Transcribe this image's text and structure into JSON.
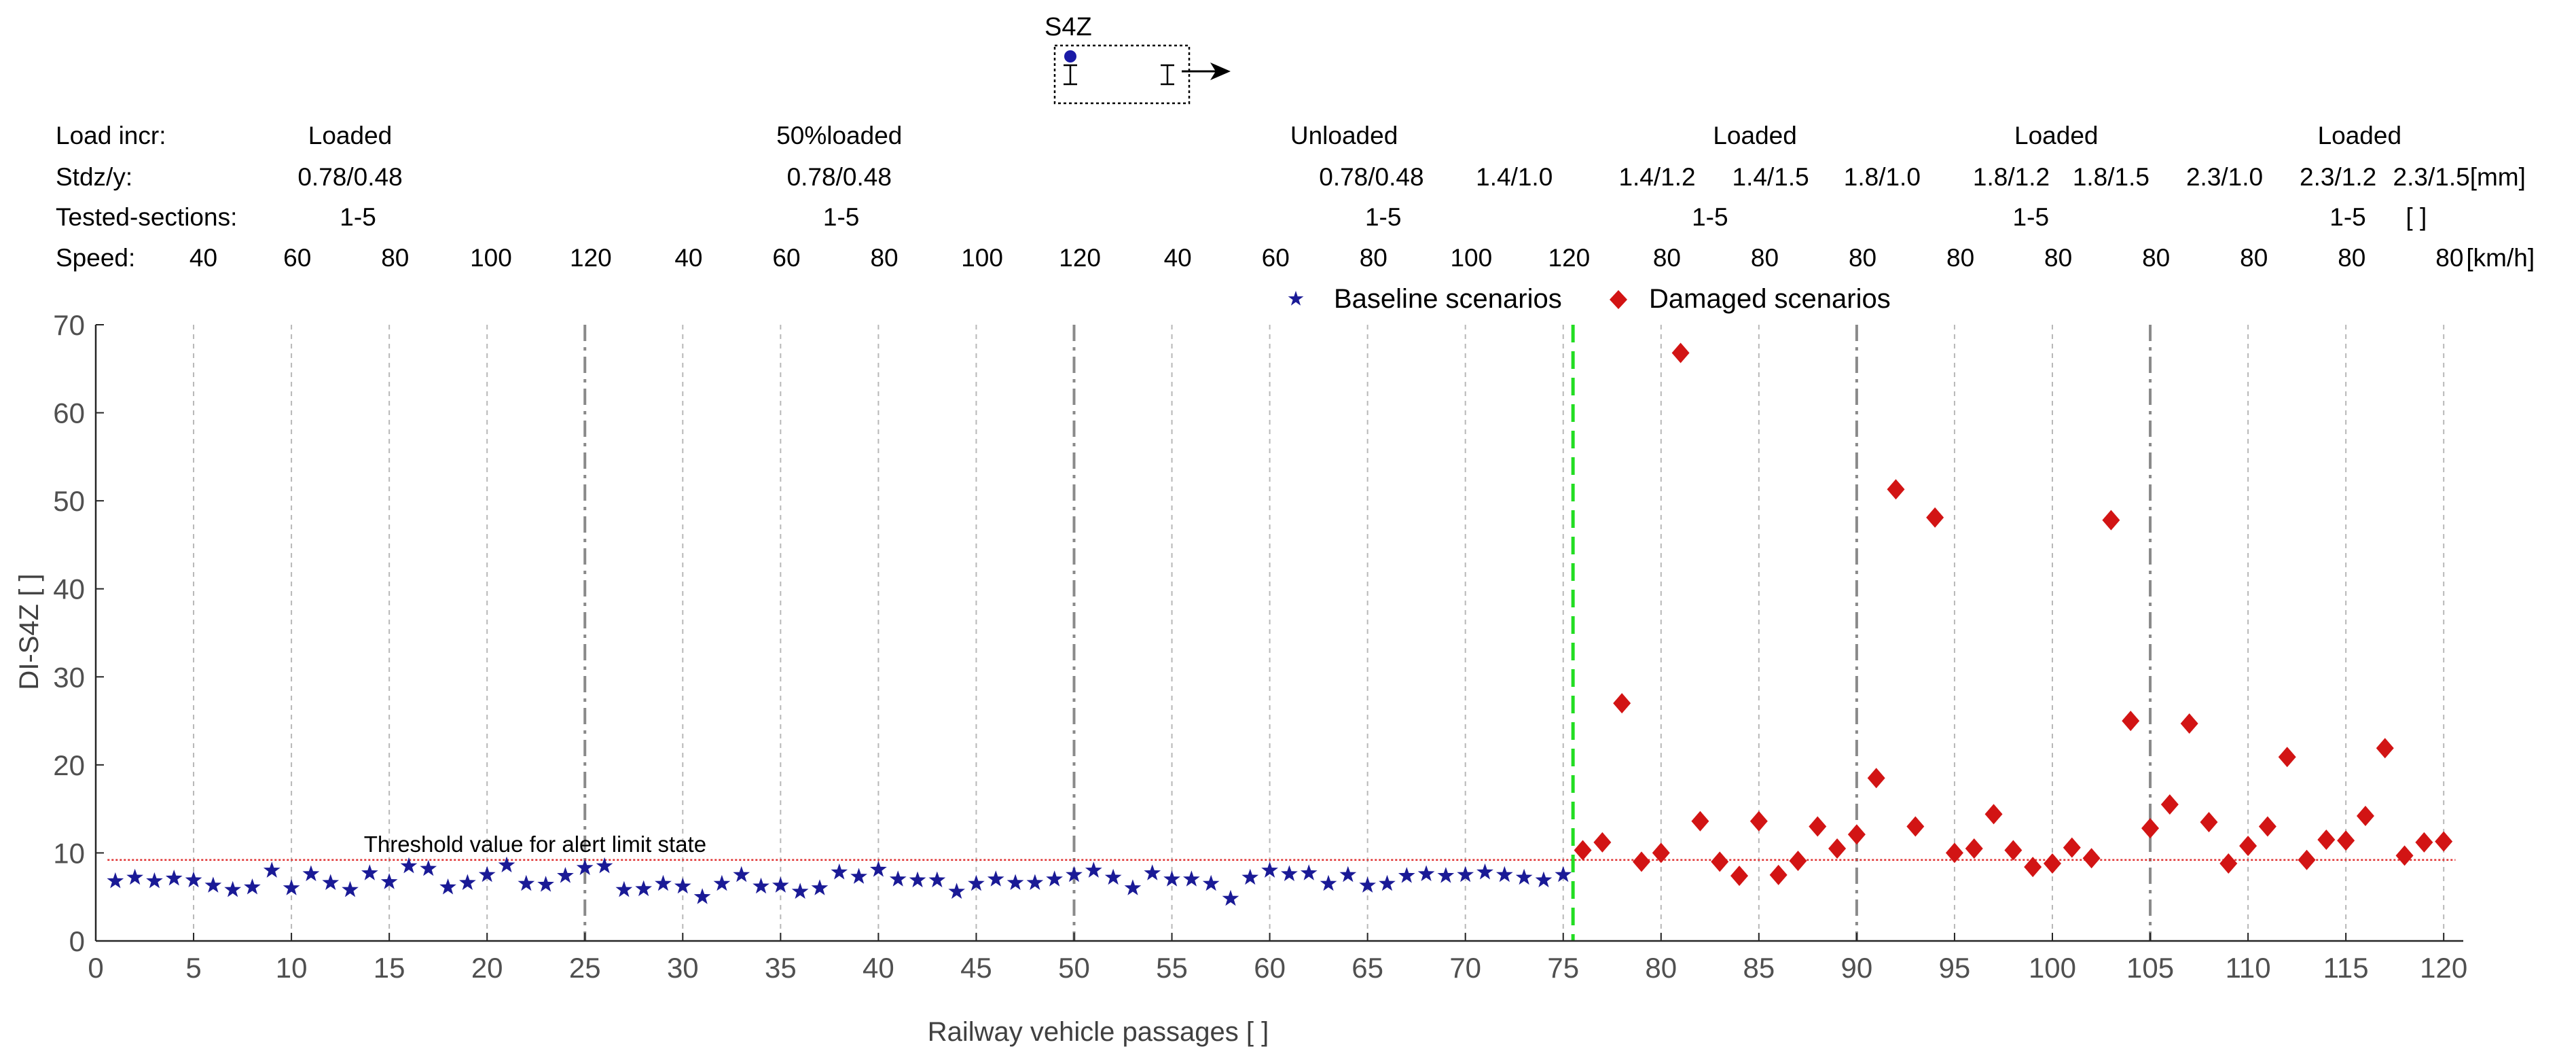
{
  "chart_data": {
    "type": "scatter",
    "title": "",
    "sensor_diagram": {
      "label": "S4Z"
    },
    "xlabel": "Railway vehicle  passages [  ]",
    "ylabel": "DI-S4Z [ ]",
    "xlim": [
      0,
      121
    ],
    "ylim": [
      0,
      70
    ],
    "xticks": [
      0,
      5,
      10,
      15,
      20,
      25,
      30,
      35,
      40,
      45,
      50,
      55,
      60,
      65,
      70,
      75,
      80,
      85,
      90,
      95,
      100,
      105,
      110,
      115,
      120
    ],
    "yticks": [
      0,
      10,
      20,
      30,
      40,
      50,
      60,
      70
    ],
    "threshold": {
      "value": 9.2,
      "label": "Threshold value for alert limit state",
      "color": "#e03030"
    },
    "group_separators": [
      25,
      50,
      90,
      105
    ],
    "damage_onset": 75.5,
    "legend": [
      {
        "name": "Baseline scenarios",
        "marker": "star",
        "color": "#1a1a96"
      },
      {
        "name": "Damaged scenarios",
        "marker": "diamond",
        "color": "#d21414"
      }
    ],
    "header_rows": {
      "load": {
        "label": "Load incr:",
        "entries": [
          {
            "text": "Loaded",
            "pos": 13
          },
          {
            "text": "50%loaded",
            "pos": 38
          },
          {
            "text": "Unloaded",
            "pos": 63.8
          },
          {
            "text": "Loaded",
            "pos": 84.8
          },
          {
            "text": "Loaded",
            "pos": 100.2
          },
          {
            "text": "Loaded",
            "pos": 115.7
          }
        ]
      },
      "std": {
        "label": "Stdz/y:",
        "entries": [
          {
            "text": "0.78/0.48",
            "pos": 13
          },
          {
            "text": "0.78/0.48",
            "pos": 38
          },
          {
            "text": "0.78/0.48",
            "pos": 65.2
          },
          {
            "text": "1.4/1.0",
            "pos": 72.5
          },
          {
            "text": "1.4/1.2",
            "pos": 79.8
          },
          {
            "text": "1.4/1.5",
            "pos": 85.6
          },
          {
            "text": "1.8/1.0",
            "pos": 91.3
          },
          {
            "text": "1.8/1.2",
            "pos": 97.9
          },
          {
            "text": "1.8/1.5",
            "pos": 103.0
          },
          {
            "text": "2.3/1.0",
            "pos": 108.8
          },
          {
            "text": "2.3/1.2",
            "pos": 114.6
          },
          {
            "text": "2.3/1.5[mm]",
            "pos": 120.8
          }
        ]
      },
      "sections": {
        "label": "Tested-sections:",
        "entries": [
          {
            "text": "1-5",
            "pos": 13.4
          },
          {
            "text": "1-5",
            "pos": 38.1
          },
          {
            "text": "1-5",
            "pos": 65.8
          },
          {
            "text": "1-5",
            "pos": 82.5
          },
          {
            "text": "1-5",
            "pos": 98.9
          },
          {
            "text": "1-5",
            "pos": 115.1
          },
          {
            "text": "[ ]",
            "pos": 118.6
          }
        ]
      },
      "speed": {
        "label": "Speed:",
        "entries": [
          {
            "text": "40",
            "pos": 5.5
          },
          {
            "text": "60",
            "pos": 10.3
          },
          {
            "text": "80",
            "pos": 15.3
          },
          {
            "text": "100",
            "pos": 20.2
          },
          {
            "text": "120",
            "pos": 25.3
          },
          {
            "text": "40",
            "pos": 30.3
          },
          {
            "text": "60",
            "pos": 35.3
          },
          {
            "text": "80",
            "pos": 40.3
          },
          {
            "text": "100",
            "pos": 45.3
          },
          {
            "text": "120",
            "pos": 50.3
          },
          {
            "text": "40",
            "pos": 55.3
          },
          {
            "text": "60",
            "pos": 60.3
          },
          {
            "text": "80",
            "pos": 65.3
          },
          {
            "text": "100",
            "pos": 70.3
          },
          {
            "text": "120",
            "pos": 75.3
          },
          {
            "text": "80",
            "pos": 80.3
          },
          {
            "text": "80",
            "pos": 85.3
          },
          {
            "text": "80",
            "pos": 90.3
          },
          {
            "text": "80",
            "pos": 95.3
          },
          {
            "text": "80",
            "pos": 100.3
          },
          {
            "text": "80",
            "pos": 105.3
          },
          {
            "text": "80",
            "pos": 110.3
          },
          {
            "text": "80",
            "pos": 115.3
          },
          {
            "text": "80",
            "pos": 120.3
          },
          {
            "text": "[km/h]",
            "pos": 122.9
          }
        ]
      }
    },
    "series": [
      {
        "name": "Baseline scenarios",
        "marker": "star",
        "x": [
          1,
          2,
          3,
          4,
          5,
          6,
          7,
          8,
          9,
          10,
          11,
          12,
          13,
          14,
          15,
          16,
          17,
          18,
          19,
          20,
          21,
          22,
          23,
          24,
          25,
          26,
          27,
          28,
          29,
          30,
          31,
          32,
          33,
          34,
          35,
          36,
          37,
          38,
          39,
          40,
          41,
          42,
          43,
          44,
          45,
          46,
          47,
          48,
          49,
          50,
          51,
          52,
          53,
          54,
          55,
          56,
          57,
          58,
          59,
          60,
          61,
          62,
          63,
          64,
          65,
          66,
          67,
          68,
          69,
          70,
          71,
          72,
          73,
          74,
          75
        ],
        "y": [
          6.8,
          7.2,
          6.8,
          7.1,
          6.9,
          6.3,
          5.8,
          6.1,
          8.0,
          6.0,
          7.6,
          6.6,
          5.8,
          7.7,
          6.7,
          8.5,
          8.2,
          6.1,
          6.6,
          7.5,
          8.6,
          6.5,
          6.4,
          7.4,
          8.3,
          8.5,
          5.8,
          5.9,
          6.5,
          6.2,
          5.0,
          6.5,
          7.5,
          6.2,
          6.3,
          5.6,
          6.0,
          7.8,
          7.3,
          8.1,
          7.0,
          6.9,
          6.9,
          5.6,
          6.5,
          7.0,
          6.6,
          6.6,
          7.0,
          7.5,
          8.0,
          7.2,
          6.0,
          7.7,
          7.0,
          7.0,
          6.5,
          4.8,
          7.2,
          8.0,
          7.6,
          7.7,
          6.5,
          7.5,
          6.3,
          6.5,
          7.4,
          7.6,
          7.4,
          7.5,
          7.8,
          7.5,
          7.2,
          6.9,
          7.5
        ]
      },
      {
        "name": "Damaged scenarios",
        "marker": "diamond",
        "x": [
          76,
          77,
          78,
          79,
          80,
          81,
          82,
          83,
          84,
          85,
          86,
          87,
          88,
          89,
          90,
          91,
          92,
          93,
          94,
          95,
          96,
          97,
          98,
          99,
          100,
          101,
          102,
          103,
          104,
          105,
          106,
          107,
          108,
          109,
          110,
          111,
          112,
          113,
          114,
          115,
          116,
          117,
          118,
          119,
          120
        ],
        "y": [
          10.3,
          11.2,
          27.0,
          9.0,
          10.0,
          66.8,
          13.6,
          9.0,
          7.4,
          13.6,
          7.5,
          9.1,
          13.0,
          10.5,
          12.1,
          18.5,
          51.3,
          13.0,
          48.1,
          10.0,
          10.5,
          14.4,
          10.3,
          8.4,
          8.8,
          10.6,
          9.4,
          47.8,
          25.0,
          12.8,
          15.5,
          24.7,
          13.5,
          8.8,
          10.8,
          13.0,
          20.9,
          9.2,
          11.5,
          11.4,
          14.2,
          21.9,
          9.7,
          11.2,
          11.3
        ]
      }
    ]
  }
}
